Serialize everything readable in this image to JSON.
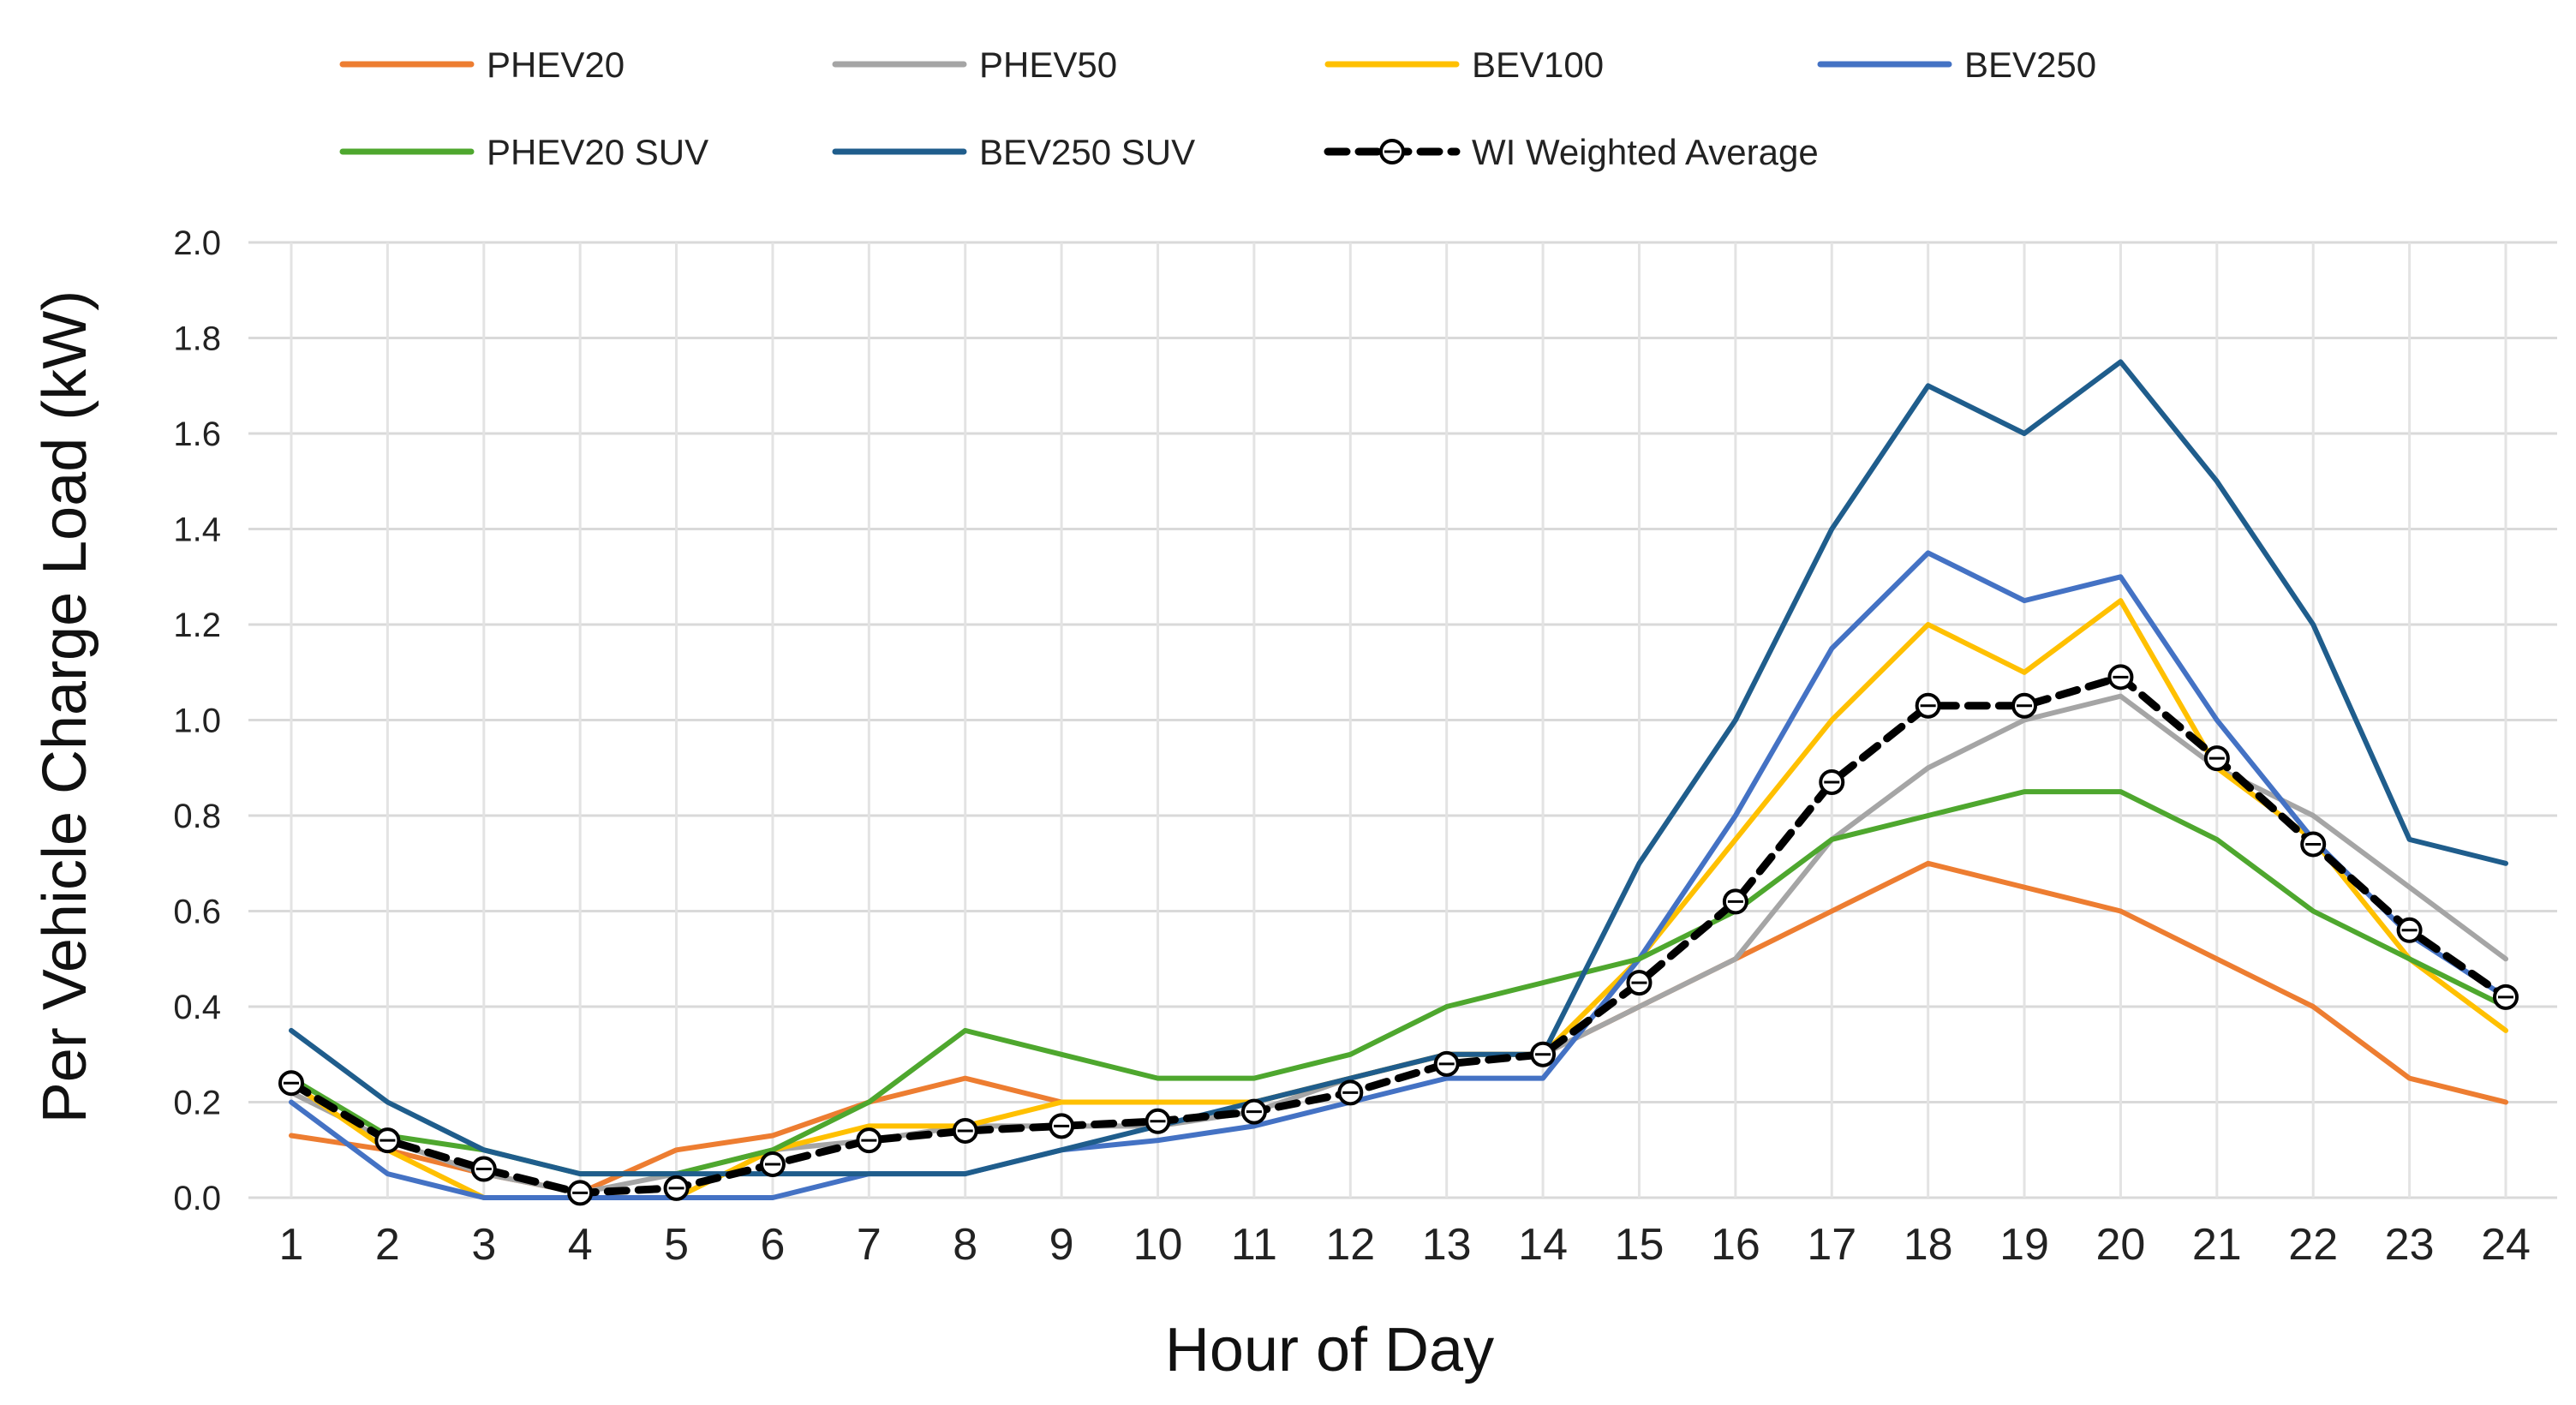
{
  "chart_data": {
    "type": "line",
    "title": "",
    "xlabel": "Hour of Day",
    "ylabel": "Per Vehicle Charge Load (kW)",
    "ylim": [
      0,
      2.0
    ],
    "ytick_labels": [
      "0.0",
      "0.2",
      "0.4",
      "0.6",
      "0.8",
      "1.0",
      "1.2",
      "1.4",
      "1.6",
      "1.8",
      "2.0"
    ],
    "ytick_values": [
      0,
      0.2,
      0.4,
      0.6,
      0.8,
      1.0,
      1.2,
      1.4,
      1.6,
      1.8,
      2.0
    ],
    "categories": [
      "1",
      "2",
      "3",
      "4",
      "5",
      "6",
      "7",
      "8",
      "9",
      "10",
      "11",
      "12",
      "13",
      "14",
      "15",
      "16",
      "17",
      "18",
      "19",
      "20",
      "21",
      "22",
      "23",
      "24"
    ],
    "grid": "horizontal and vertical",
    "legend_position": "top",
    "series": [
      {
        "name": "PHEV20",
        "color": "#ED7D31",
        "style": "solid",
        "values": [
          0.13,
          0.1,
          0.05,
          0.01,
          0.1,
          0.13,
          0.2,
          0.25,
          0.2,
          0.2,
          0.2,
          0.25,
          0.3,
          0.3,
          0.4,
          0.5,
          0.6,
          0.7,
          0.65,
          0.6,
          0.5,
          0.4,
          0.25,
          0.2
        ]
      },
      {
        "name": "PHEV50",
        "color": "#A5A5A5",
        "style": "solid",
        "values": [
          0.22,
          0.12,
          0.05,
          0.01,
          0.05,
          0.1,
          0.12,
          0.15,
          0.15,
          0.15,
          0.18,
          0.25,
          0.3,
          0.3,
          0.4,
          0.5,
          0.75,
          0.9,
          1.0,
          1.05,
          0.9,
          0.8,
          0.65,
          0.5
        ]
      },
      {
        "name": "BEV100",
        "color": "#FFC000",
        "style": "solid",
        "values": [
          0.24,
          0.1,
          0.0,
          0.0,
          0.0,
          0.1,
          0.15,
          0.15,
          0.2,
          0.2,
          0.2,
          0.25,
          0.3,
          0.3,
          0.5,
          0.75,
          1.0,
          1.2,
          1.1,
          1.25,
          0.9,
          0.75,
          0.5,
          0.35
        ]
      },
      {
        "name": "BEV250",
        "color": "#4472C4",
        "style": "solid",
        "values": [
          0.2,
          0.05,
          0.0,
          0.0,
          0.0,
          0.0,
          0.05,
          0.05,
          0.1,
          0.12,
          0.15,
          0.2,
          0.25,
          0.25,
          0.5,
          0.8,
          1.15,
          1.35,
          1.25,
          1.3,
          1.0,
          0.75,
          0.55,
          0.42
        ]
      },
      {
        "name": "PHEV20 SUV",
        "color": "#4EA72E",
        "style": "solid",
        "values": [
          0.25,
          0.13,
          0.1,
          0.05,
          0.05,
          0.1,
          0.2,
          0.35,
          0.3,
          0.25,
          0.25,
          0.3,
          0.4,
          0.45,
          0.5,
          0.6,
          0.75,
          0.8,
          0.85,
          0.85,
          0.75,
          0.6,
          0.5,
          0.4
        ]
      },
      {
        "name": "BEV250 SUV",
        "color": "#1F5D8C",
        "style": "solid",
        "values": [
          0.35,
          0.2,
          0.1,
          0.05,
          0.05,
          0.05,
          0.05,
          0.05,
          0.1,
          0.15,
          0.2,
          0.25,
          0.3,
          0.3,
          0.7,
          1.0,
          1.4,
          1.7,
          1.6,
          1.75,
          1.5,
          1.2,
          0.75,
          0.7
        ]
      },
      {
        "name": "WI Weighted Average",
        "color": "#000000",
        "style": "dashed",
        "marker": "circle",
        "values": [
          0.24,
          0.12,
          0.06,
          0.01,
          0.02,
          0.07,
          0.12,
          0.14,
          0.15,
          0.16,
          0.18,
          0.22,
          0.28,
          0.3,
          0.45,
          0.62,
          0.87,
          1.03,
          1.03,
          1.09,
          0.92,
          0.74,
          0.56,
          0.42
        ]
      }
    ]
  }
}
